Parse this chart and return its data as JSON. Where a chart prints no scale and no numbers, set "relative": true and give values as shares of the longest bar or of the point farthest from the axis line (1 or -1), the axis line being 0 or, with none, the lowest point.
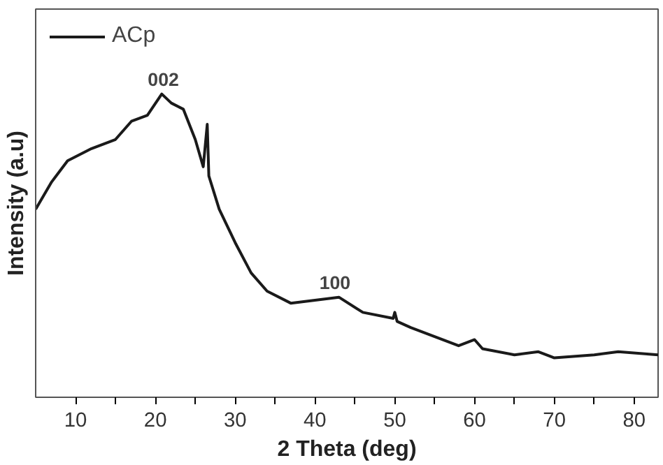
{
  "chart_data": {
    "type": "line",
    "xlabel": "2 Theta (deg)",
    "ylabel": "Intensity (a.u)",
    "relative": true,
    "xlim": [
      5,
      83
    ],
    "xticks": [
      10,
      {
        "value": 15,
        "label": null
      },
      20,
      {
        "value": 25,
        "label": null
      },
      30,
      {
        "value": 35,
        "label": null
      },
      40,
      {
        "value": 45,
        "label": null
      },
      50,
      {
        "value": 55,
        "label": null
      },
      60,
      {
        "value": 65,
        "label": null
      },
      70,
      {
        "value": 75,
        "label": null
      },
      80
    ],
    "grid": false,
    "legend": "top left",
    "marker": "none",
    "line_style": "solid",
    "annotations": [
      {
        "text": "002",
        "x": 21,
        "y": 1.0
      },
      {
        "text": "100",
        "x": 42.5,
        "y": 0.33
      }
    ],
    "series": [
      {
        "name": "ACp",
        "color": "#1a1a1a",
        "x": [
          5,
          7,
          9,
          12,
          15,
          17,
          19,
          20.8,
          22,
          23.5,
          25,
          26,
          26.5,
          26.7,
          28,
          30,
          32,
          34,
          37,
          40,
          43,
          46,
          49.8,
          50,
          50.3,
          52,
          55,
          58,
          60,
          61,
          65,
          68,
          70,
          75,
          78,
          83
        ],
        "values": [
          0.62,
          0.71,
          0.78,
          0.82,
          0.85,
          0.91,
          0.93,
          1.0,
          0.97,
          0.95,
          0.85,
          0.76,
          0.9,
          0.73,
          0.62,
          0.51,
          0.41,
          0.35,
          0.31,
          0.32,
          0.33,
          0.28,
          0.26,
          0.28,
          0.25,
          0.23,
          0.2,
          0.17,
          0.19,
          0.16,
          0.14,
          0.15,
          0.13,
          0.14,
          0.15,
          0.14
        ]
      }
    ]
  }
}
